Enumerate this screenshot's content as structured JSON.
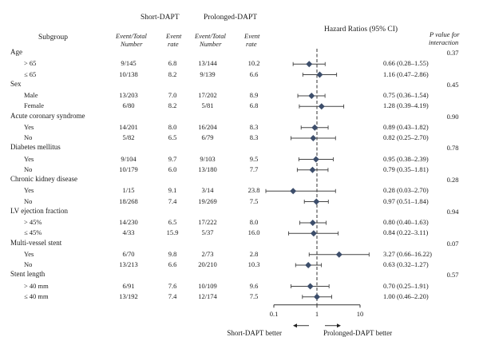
{
  "headers": {
    "subgroup": "Subgroup",
    "short_dapt": "Short-DAPT",
    "prolonged_dapt": "Prolonged-DAPT",
    "event_total": "Event/Total",
    "number": "Number",
    "event": "Event",
    "rate": "rate",
    "hazard_ratios": "Hazard Ratios (95% CI)",
    "p_value_line1": "P value for",
    "p_value_line2": "interaction"
  },
  "groups": [
    {
      "label": "Age",
      "p_value": "0.37",
      "rows": [
        {
          "label": "> 65",
          "short_event_total": "9/145",
          "short_rate": "6.8",
          "prolonged_event_total": "13/144",
          "prolonged_rate": "10.2",
          "hr_text": "0.66 (0.28–1.55)"
        },
        {
          "label": "≤ 65",
          "short_event_total": "10/138",
          "short_rate": "8.2",
          "prolonged_event_total": "9/139",
          "prolonged_rate": "6.6",
          "hr_text": "1.16 (0.47–2.86)"
        }
      ]
    },
    {
      "label": "Sex",
      "p_value": "0.45",
      "rows": [
        {
          "label": "Male",
          "short_event_total": "13/203",
          "short_rate": "7.0",
          "prolonged_event_total": "17/202",
          "prolonged_rate": "8.9",
          "hr_text": "0.75 (0.36–1.54)"
        },
        {
          "label": "Female",
          "short_event_total": "6/80",
          "short_rate": "8.2",
          "prolonged_event_total": "5/81",
          "prolonged_rate": "6.8",
          "hr_text": "1.28 (0.39–4.19)"
        }
      ]
    },
    {
      "label": "Acute coronary syndrome",
      "p_value": "0.90",
      "rows": [
        {
          "label": "Yes",
          "short_event_total": "14/201",
          "short_rate": "8.0",
          "prolonged_event_total": "16/204",
          "prolonged_rate": "8.3",
          "hr_text": "0.89 (0.43–1.82)"
        },
        {
          "label": "No",
          "short_event_total": "5/82",
          "short_rate": "6.5",
          "prolonged_event_total": "6/79",
          "prolonged_rate": "8.3",
          "hr_text": "0.82 (0.25–2.70)"
        }
      ]
    },
    {
      "label": "Diabetes mellitus",
      "p_value": "0.78",
      "rows": [
        {
          "label": "Yes",
          "short_event_total": "9/104",
          "short_rate": "9.7",
          "prolonged_event_total": "9/103",
          "prolonged_rate": "9.5",
          "hr_text": "0.95 (0.38–2.39)"
        },
        {
          "label": "No",
          "short_event_total": "10/179",
          "short_rate": "6.0",
          "prolonged_event_total": "13/180",
          "prolonged_rate": "7.7",
          "hr_text": "0.79 (0.35–1.81)"
        }
      ]
    },
    {
      "label": "Chronic kidney disease",
      "p_value": "0.28",
      "rows": [
        {
          "label": "Yes",
          "short_event_total": "1/15",
          "short_rate": "9.1",
          "prolonged_event_total": "3/14",
          "prolonged_rate": "23.8",
          "hr_text": "0.28 (0.03–2.70)"
        },
        {
          "label": "No",
          "short_event_total": "18/268",
          "short_rate": "7.4",
          "prolonged_event_total": "19/269",
          "prolonged_rate": "7.5",
          "hr_text": "0.97 (0.51–1.84)"
        }
      ]
    },
    {
      "label": "LV ejection fraction",
      "p_value": "0.94",
      "rows": [
        {
          "label": "> 45%",
          "short_event_total": "14/230",
          "short_rate": "6.5",
          "prolonged_event_total": "17/222",
          "prolonged_rate": "8.0",
          "hr_text": "0.80 (0.40–1.63)"
        },
        {
          "label": "≤ 45%",
          "short_event_total": "4/33",
          "short_rate": "15.9",
          "prolonged_event_total": "5/37",
          "prolonged_rate": "16.0",
          "hr_text": "0.84 (0.22–3.11)"
        }
      ]
    },
    {
      "label": "Multi-vessel stent",
      "p_value": "0.07",
      "rows": [
        {
          "label": "Yes",
          "short_event_total": "6/70",
          "short_rate": "9.8",
          "prolonged_event_total": "2/73",
          "prolonged_rate": "2.8",
          "hr_text": "3.27 (0.66–16.22)"
        },
        {
          "label": "No",
          "short_event_total": "13/213",
          "short_rate": "6.6",
          "prolonged_event_total": "20/210",
          "prolonged_rate": "10.3",
          "hr_text": "0.63 (0.32–1.27)"
        }
      ]
    },
    {
      "label": "Stent length",
      "p_value": "0.57",
      "rows": [
        {
          "label": "> 40 mm",
          "short_event_total": "6/91",
          "short_rate": "7.6",
          "prolonged_event_total": "10/109",
          "prolonged_rate": "9.6",
          "hr_text": "0.70 (0.25–1.91)"
        },
        {
          "label": "≤ 40 mm",
          "short_event_total": "13/192",
          "short_rate": "7.4",
          "prolonged_event_total": "12/174",
          "prolonged_rate": "7.5",
          "hr_text": "1.00 (0.46–2.20)"
        }
      ]
    }
  ],
  "chart_data": {
    "type": "forest",
    "x_scale": "log",
    "xlim": [
      0.1,
      10
    ],
    "x_ticks": [
      "0.1",
      "1",
      "10"
    ],
    "reference_line": 1,
    "reference_line_style": "dashed",
    "marker": "diamond",
    "marker_color": "#3d4e6b",
    "annotations": {
      "left": "Short-DAPT better",
      "right": "Prolonged-DAPT better"
    },
    "points": [
      {
        "group": "Age",
        "label": "> 65",
        "hr": 0.66,
        "lo": 0.28,
        "hi": 1.55
      },
      {
        "group": "Age",
        "label": "≤ 65",
        "hr": 1.16,
        "lo": 0.47,
        "hi": 2.86
      },
      {
        "group": "Sex",
        "label": "Male",
        "hr": 0.75,
        "lo": 0.36,
        "hi": 1.54
      },
      {
        "group": "Sex",
        "label": "Female",
        "hr": 1.28,
        "lo": 0.39,
        "hi": 4.19
      },
      {
        "group": "Acute coronary syndrome",
        "label": "Yes",
        "hr": 0.89,
        "lo": 0.43,
        "hi": 1.82
      },
      {
        "group": "Acute coronary syndrome",
        "label": "No",
        "hr": 0.82,
        "lo": 0.25,
        "hi": 2.7
      },
      {
        "group": "Diabetes mellitus",
        "label": "Yes",
        "hr": 0.95,
        "lo": 0.38,
        "hi": 2.39
      },
      {
        "group": "Diabetes mellitus",
        "label": "No",
        "hr": 0.79,
        "lo": 0.35,
        "hi": 1.81
      },
      {
        "group": "Chronic kidney disease",
        "label": "Yes",
        "hr": 0.28,
        "lo": 0.03,
        "hi": 2.7
      },
      {
        "group": "Chronic kidney disease",
        "label": "No",
        "hr": 0.97,
        "lo": 0.51,
        "hi": 1.84
      },
      {
        "group": "LV ejection fraction",
        "label": "> 45%",
        "hr": 0.8,
        "lo": 0.4,
        "hi": 1.63
      },
      {
        "group": "LV ejection fraction",
        "label": "≤ 45%",
        "hr": 0.84,
        "lo": 0.22,
        "hi": 3.11
      },
      {
        "group": "Multi-vessel stent",
        "label": "Yes",
        "hr": 3.27,
        "lo": 0.66,
        "hi": 16.22
      },
      {
        "group": "Multi-vessel stent",
        "label": "No",
        "hr": 0.63,
        "lo": 0.32,
        "hi": 1.27
      },
      {
        "group": "Stent length",
        "label": "> 40 mm",
        "hr": 0.7,
        "lo": 0.25,
        "hi": 1.91
      },
      {
        "group": "Stent length",
        "label": "≤ 40 mm",
        "hr": 1.0,
        "lo": 0.46,
        "hi": 2.2
      }
    ]
  }
}
